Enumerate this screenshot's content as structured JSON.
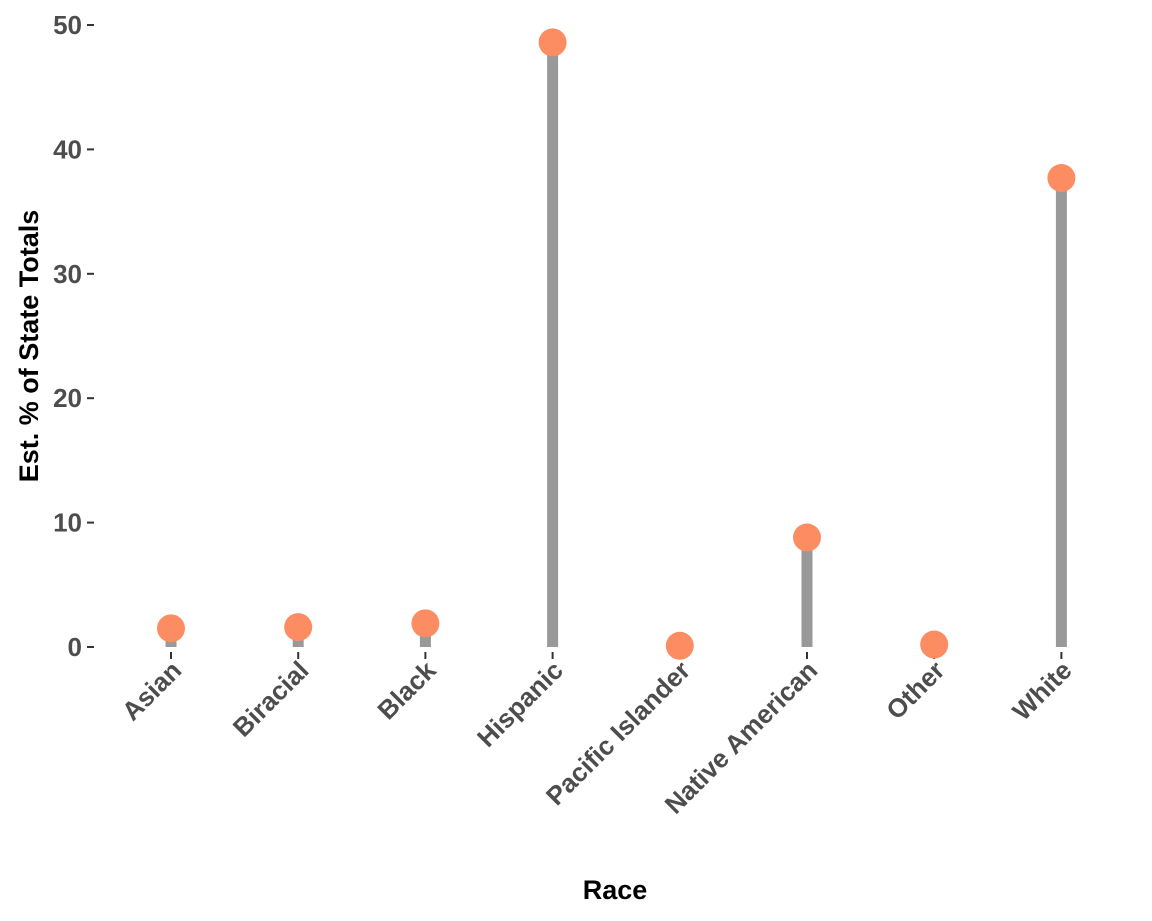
{
  "chart_data": {
    "type": "lollipop",
    "title": "",
    "xlabel": "Race",
    "ylabel": "Est. % of State Totals",
    "categories": [
      "Asian",
      "Biracial",
      "Black",
      "Hispanic",
      "Pacific Islander",
      "Native American",
      "Other",
      "White"
    ],
    "values": [
      1.5,
      1.6,
      1.9,
      48.6,
      0.1,
      8.8,
      0.2,
      37.7
    ],
    "ylim": [
      0,
      50
    ],
    "yticks": [
      "0",
      "10",
      "20",
      "30",
      "40",
      "50"
    ],
    "grid": false,
    "legend": "none",
    "colors": {
      "point": "#fc8d62",
      "stem": "#999999",
      "tick_text": "#4d4d4d",
      "title_text": "#000000"
    }
  }
}
